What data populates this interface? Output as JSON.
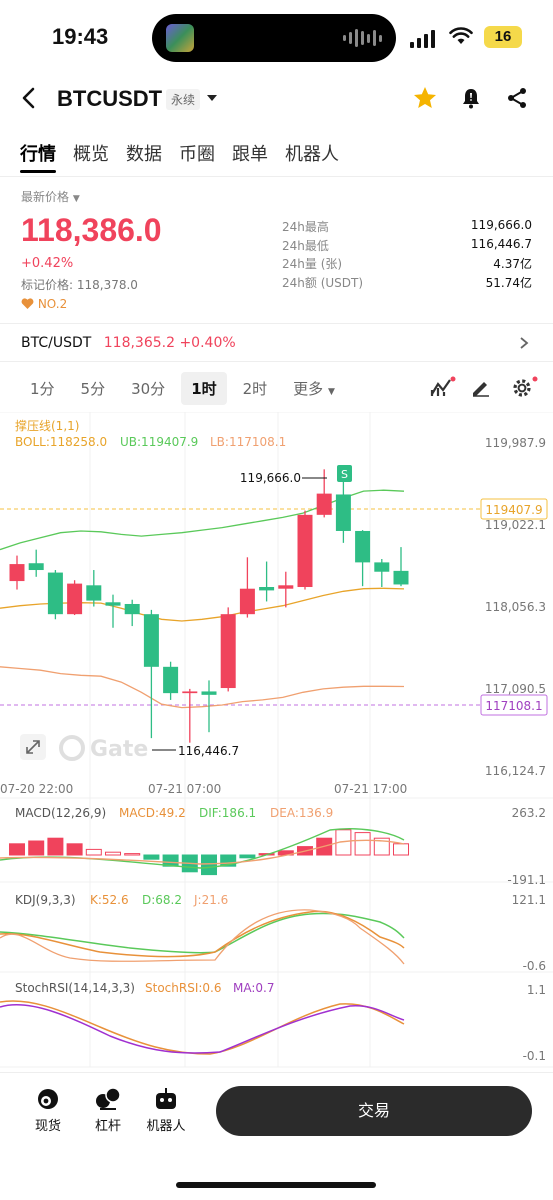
{
  "status": {
    "time": "19:43",
    "battery": "16"
  },
  "header": {
    "title": "BTCUSDT",
    "contract": "永续"
  },
  "tabs": [
    "行情",
    "概览",
    "数据",
    "币圈",
    "跟单",
    "机器人"
  ],
  "ticker": {
    "last_label": "最新价格",
    "price": "118,386.0",
    "change": "+0.42%",
    "mark_price": "标记价格: 118,378.0",
    "rank": "NO.2",
    "stats": [
      {
        "k": "24h最高",
        "v": "119,666.0"
      },
      {
        "k": "24h最低",
        "v": "116,446.7"
      },
      {
        "k": "24h量 (张)",
        "v": "4.37亿"
      },
      {
        "k": "24h额 (USDT)",
        "v": "51.74亿"
      }
    ]
  },
  "spot": {
    "pair": "BTC/USDT",
    "value": "118,365.2 +0.40%"
  },
  "intervals": [
    "1分",
    "5分",
    "30分",
    "1时",
    "2时",
    "更多"
  ],
  "active_interval": "1时",
  "chart_data": {
    "type": "candlestick",
    "indicator_title": "撑压线(1,1)",
    "boll": {
      "label": "BOLL:118258.0",
      "ub": "UB:119407.9",
      "lb": "LB:117108.1"
    },
    "price_ticks": [
      "119,987.9",
      "119,022.1",
      "118,056.3",
      "117,090.5",
      "116,124.7"
    ],
    "line_labels": {
      "upper": "119407.9",
      "lower": "117108.1"
    },
    "annotations": {
      "high": "119,666.0",
      "low": "116,446.7",
      "marker": "S"
    },
    "x_ticks": [
      "07-20 22:00",
      "07-21 07:00",
      "07-21 17:00"
    ],
    "watermark": "Gate",
    "candles": [
      {
        "o": 118350,
        "c": 118550,
        "h": 118650,
        "l": 118250
      },
      {
        "o": 118560,
        "c": 118480,
        "h": 118720,
        "l": 118400
      },
      {
        "o": 118450,
        "c": 117960,
        "h": 118480,
        "l": 117900
      },
      {
        "o": 117960,
        "c": 118320,
        "h": 118360,
        "l": 117950
      },
      {
        "o": 118300,
        "c": 118120,
        "h": 118480,
        "l": 118050
      },
      {
        "o": 118100,
        "c": 118060,
        "h": 118190,
        "l": 117800
      },
      {
        "o": 118080,
        "c": 117960,
        "h": 118130,
        "l": 117820
      },
      {
        "o": 117960,
        "c": 117340,
        "h": 118010,
        "l": 116500
      },
      {
        "o": 117340,
        "c": 117030,
        "h": 117400,
        "l": 116950
      },
      {
        "o": 117030,
        "c": 117050,
        "h": 117080,
        "l": 116446.7
      },
      {
        "o": 117050,
        "c": 117010,
        "h": 117180,
        "l": 116570
      },
      {
        "o": 117090,
        "c": 117960,
        "h": 118040,
        "l": 117050
      },
      {
        "o": 117960,
        "c": 118260,
        "h": 118630,
        "l": 117920
      },
      {
        "o": 118280,
        "c": 118240,
        "h": 118580,
        "l": 118110
      },
      {
        "o": 118260,
        "c": 118300,
        "h": 118460,
        "l": 118040
      },
      {
        "o": 118280,
        "c": 119130,
        "h": 119180,
        "l": 118250
      },
      {
        "o": 119130,
        "c": 119380,
        "h": 119666,
        "l": 119100
      },
      {
        "o": 119370,
        "c": 118940,
        "h": 119540,
        "l": 118800
      },
      {
        "o": 118940,
        "c": 118570,
        "h": 118950,
        "l": 118290
      },
      {
        "o": 118570,
        "c": 118460,
        "h": 118610,
        "l": 118280
      },
      {
        "o": 118470,
        "c": 118310,
        "h": 118750,
        "l": 118290
      }
    ],
    "macd": {
      "label": "MACD(12,26,9)",
      "macd": "MACD:49.2",
      "dif": "DIF:186.1",
      "dea": "DEA:136.9",
      "ticks": [
        "263.2",
        "-191.1"
      ]
    },
    "kdj": {
      "label": "KDJ(9,3,3)",
      "k": "K:52.6",
      "d": "D:68.2",
      "j": "J:21.6",
      "ticks": [
        "121.1",
        "-0.6"
      ]
    },
    "stochrsi": {
      "label": "StochRSI(14,14,3,3)",
      "value": "StochRSI:0.6",
      "ma": "MA:0.7",
      "ticks": [
        "1.1",
        "-0.1"
      ]
    }
  },
  "colors": {
    "up": "#f0435c",
    "down": "#2ebd85",
    "accent": "#f5a623"
  },
  "bottom_nav": [
    "现货",
    "杠杆",
    "机器人"
  ],
  "trade_button": "交易"
}
